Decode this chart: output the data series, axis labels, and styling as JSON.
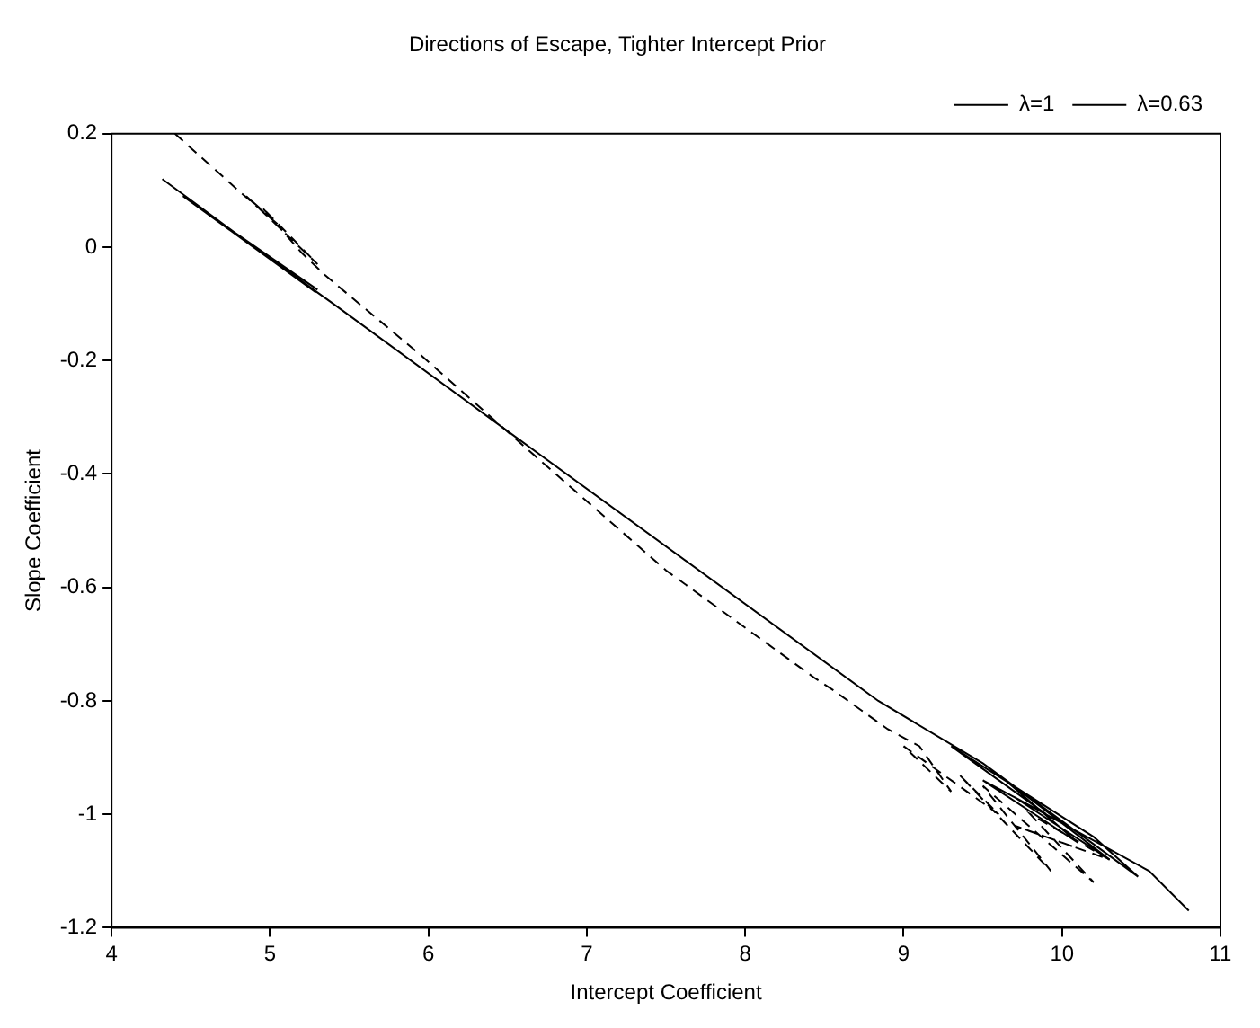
{
  "chart_data": {
    "type": "line",
    "title": "Directions of Escape, Tighter Intercept Prior",
    "xlabel": "Intercept Coefficient",
    "ylabel": "Slope Coefficient",
    "xlim": [
      4,
      11
    ],
    "xticks": [
      4,
      5,
      6,
      7,
      8,
      9,
      10,
      11
    ],
    "ylim": [
      -1.2,
      0.2
    ],
    "yticks": [
      -1.2,
      -1,
      -0.8,
      -0.6,
      -0.4,
      -0.2,
      0,
      0.2
    ],
    "grid": false,
    "legend": "top right",
    "marker": "none",
    "series": [
      {
        "name": "λ=1",
        "color": "#000000",
        "line_style": "solid",
        "x": [
          4.32,
          5.29,
          4.45,
          5.15,
          4.6,
          5.3,
          4.7,
          5.4,
          6.38,
          8.84,
          9.5,
          10.48,
          10.2,
          9.3,
          9.9,
          9.5,
          10.1,
          9.6,
          10.3,
          9.7,
          10.55,
          10.8
        ],
        "values": [
          0.12,
          -0.08,
          0.09,
          -0.05,
          0.06,
          -0.075,
          0.04,
          -0.1,
          -0.3,
          -0.8,
          -0.91,
          -1.11,
          -1.04,
          -0.88,
          -1,
          -0.94,
          -1.05,
          -0.93,
          -1.08,
          -0.97,
          -1.1,
          -1.17
        ]
      },
      {
        "name": "λ=0.63",
        "color": "#000000",
        "line_style": "dashed",
        "x": [
          4.4,
          4.8,
          5.05,
          4.85,
          5.3,
          4.95,
          5.2,
          5.35,
          5.95,
          6.64,
          7.5,
          8.44,
          8.55,
          8.9,
          9.1,
          9.3,
          9,
          9.6,
          9.35,
          9.93,
          9.5,
          10.2,
          9.8,
          10.3,
          9.7,
          10.1
        ],
        "values": [
          0.2,
          0.1,
          0.04,
          0.09,
          -0.03,
          0.07,
          -0.01,
          -0.05,
          -0.19,
          -0.36,
          -0.57,
          -0.76,
          -0.78,
          -0.85,
          -0.88,
          -0.96,
          -0.88,
          -1,
          -0.93,
          -1.1,
          -0.95,
          -1.12,
          -1,
          -1.08,
          -1.02,
          -1.06
        ]
      }
    ]
  }
}
